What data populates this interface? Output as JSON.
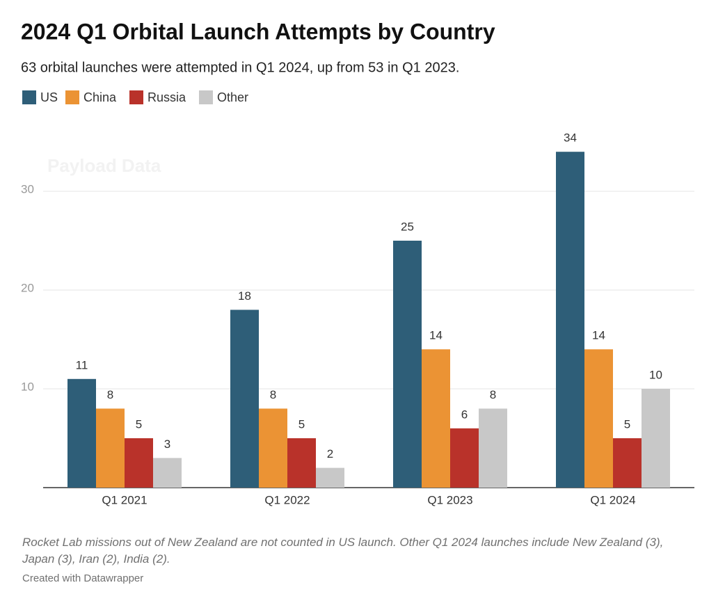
{
  "chart_data": {
    "type": "bar",
    "title": "2024 Q1 Orbital Launch Attempts by Country",
    "subtitle": "63 orbital launches were attempted in Q1 2024, up from 53 in Q1 2023.",
    "watermark": "Payload Data",
    "categories": [
      "Q1 2021",
      "Q1 2022",
      "Q1 2023",
      "Q1 2024"
    ],
    "series": [
      {
        "name": "US",
        "color": "#2e5e78",
        "values": [
          11,
          18,
          25,
          34
        ]
      },
      {
        "name": "China",
        "color": "#eb9334",
        "values": [
          8,
          8,
          14,
          14
        ]
      },
      {
        "name": "Russia",
        "color": "#b9322a",
        "values": [
          5,
          5,
          6,
          5
        ]
      },
      {
        "name": "Other",
        "color": "#c8c8c8",
        "values": [
          3,
          2,
          8,
          10
        ]
      }
    ],
    "ylim": [
      0,
      35
    ],
    "yticks": [
      10,
      20,
      30
    ],
    "grid": true,
    "note": "Rocket Lab missions out of New Zealand are not counted in US launch. Other Q1 2024 launches include New Zealand (3), Japan (3), Iran (2), India (2).",
    "credit": "Created with Datawrapper"
  }
}
